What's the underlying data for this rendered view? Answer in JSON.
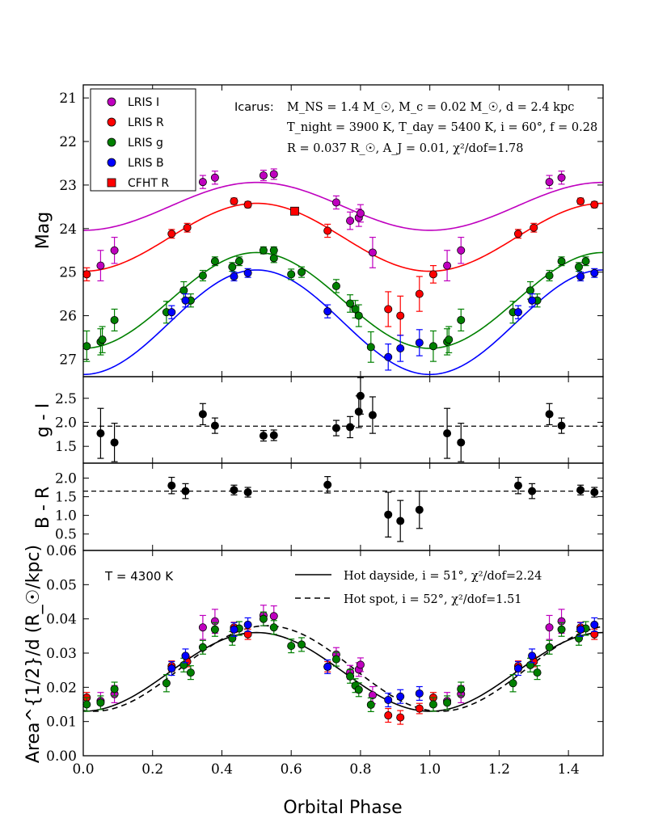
{
  "chart_data": [
    {
      "type": "scatter",
      "panel": "magnitude",
      "ylabel": "Mag",
      "xlim": [
        0.0,
        1.5
      ],
      "ylim": [
        27.4,
        20.7
      ],
      "y_inverted": true,
      "yticks": [
        "21",
        "22",
        "23",
        "24",
        "25",
        "26",
        "27"
      ],
      "legend": {
        "placement": "top-left",
        "entries": [
          {
            "label": "LRIS I",
            "color": "#bf00bf",
            "marker": "circle"
          },
          {
            "label": "LRIS R",
            "color": "#ff0000",
            "marker": "circle"
          },
          {
            "label": "LRIS g",
            "color": "#008000",
            "marker": "circle"
          },
          {
            "label": "LRIS B",
            "color": "#0000ff",
            "marker": "circle"
          },
          {
            "label": "CFHT R",
            "color": "#ff0000",
            "marker": "square"
          }
        ]
      },
      "annotation": {
        "line1_label": "Icarus:",
        "line1": "M_NS = 1.4 M_☉, M_c = 0.02 M_☉, d = 2.4 kpc",
        "line2": "T_night = 3900 K, T_day = 5400 K, i = 60°, f = 0.28",
        "line3": "R = 0.037 R_☉, A_J = 0.01, χ²/dof=1.78"
      },
      "models": [
        {
          "name": "I model",
          "color": "#bf00bf",
          "mean": 23.49,
          "amplitude": 0.55,
          "peak_phase": 0.5
        },
        {
          "name": "R model",
          "color": "#ff0000",
          "mean": 24.2,
          "amplitude": 0.78,
          "peak_phase": 0.5
        },
        {
          "name": "g model",
          "color": "#008000",
          "mean": 25.65,
          "amplitude": 1.1,
          "peak_phase": 0.5
        },
        {
          "name": "B model",
          "color": "#0000ff",
          "mean": 26.15,
          "amplitude": 1.2,
          "peak_phase": 0.5
        }
      ],
      "series": [
        {
          "name": "LRIS I",
          "color": "#bf00bf",
          "marker": "circle",
          "x": [
            0.05,
            0.09,
            0.345,
            0.38,
            0.52,
            0.55,
            0.73,
            0.77,
            0.795,
            0.8,
            0.835,
            1.05,
            1.09,
            1.345,
            1.38
          ],
          "y": [
            24.85,
            24.5,
            22.93,
            22.83,
            22.78,
            22.75,
            23.4,
            23.82,
            23.75,
            23.65,
            24.55,
            24.85,
            24.5,
            22.93,
            22.83
          ],
          "err": [
            0.35,
            0.3,
            0.15,
            0.15,
            0.12,
            0.12,
            0.15,
            0.2,
            0.2,
            0.2,
            0.35,
            0.35,
            0.3,
            0.15,
            0.15
          ]
        },
        {
          "name": "LRIS R",
          "color": "#ff0000",
          "marker": "circle",
          "x": [
            0.01,
            0.255,
            0.3,
            0.435,
            0.475,
            0.705,
            0.88,
            0.915,
            0.97,
            1.01,
            1.255,
            1.3,
            1.435,
            1.475
          ],
          "y": [
            25.05,
            24.12,
            23.98,
            23.37,
            23.45,
            24.05,
            25.85,
            26.0,
            25.5,
            25.05,
            24.12,
            23.98,
            23.37,
            23.45
          ],
          "err": [
            0.15,
            0.1,
            0.1,
            0.07,
            0.07,
            0.15,
            0.4,
            0.45,
            0.4,
            0.2,
            0.1,
            0.1,
            0.07,
            0.07
          ]
        },
        {
          "name": "LRIS g",
          "color": "#008000",
          "marker": "circle",
          "x": [
            0.01,
            0.05,
            0.055,
            0.09,
            0.24,
            0.29,
            0.31,
            0.345,
            0.38,
            0.43,
            0.45,
            0.52,
            0.55,
            0.55,
            0.6,
            0.63,
            0.73,
            0.77,
            0.785,
            0.795,
            0.83,
            1.01,
            1.05,
            1.055,
            1.09,
            1.24,
            1.29,
            1.31,
            1.345,
            1.38,
            1.43,
            1.45
          ],
          "y": [
            26.7,
            26.6,
            26.55,
            26.1,
            25.92,
            25.42,
            25.65,
            25.08,
            24.75,
            24.88,
            24.75,
            24.5,
            24.5,
            24.68,
            25.05,
            25.0,
            25.32,
            25.72,
            25.85,
            26.0,
            26.72,
            26.7,
            26.6,
            26.55,
            26.1,
            25.92,
            25.42,
            25.65,
            25.08,
            24.75,
            24.88,
            24.75
          ],
          "err": [
            0.35,
            0.3,
            0.3,
            0.25,
            0.25,
            0.2,
            0.15,
            0.12,
            0.1,
            0.1,
            0.1,
            0.08,
            0.08,
            0.1,
            0.12,
            0.12,
            0.15,
            0.2,
            0.2,
            0.25,
            0.35,
            0.35,
            0.3,
            0.3,
            0.25,
            0.25,
            0.2,
            0.15,
            0.12,
            0.1,
            0.1,
            0.1
          ]
        },
        {
          "name": "LRIS B",
          "color": "#0000ff",
          "marker": "circle",
          "x": [
            0.255,
            0.295,
            0.435,
            0.475,
            0.705,
            0.88,
            0.915,
            0.97,
            1.255,
            1.295,
            1.435,
            1.475
          ],
          "y": [
            25.92,
            25.65,
            25.1,
            25.02,
            25.9,
            26.95,
            26.75,
            26.62,
            25.92,
            25.65,
            25.1,
            25.02
          ],
          "err": [
            0.15,
            0.15,
            0.1,
            0.1,
            0.15,
            0.3,
            0.3,
            0.3,
            0.15,
            0.15,
            0.1,
            0.1
          ]
        },
        {
          "name": "CFHT R",
          "color": "#ff0000",
          "marker": "square",
          "x": [
            0.61
          ],
          "y": [
            23.6
          ],
          "err": [
            0.0
          ]
        }
      ]
    },
    {
      "type": "scatter",
      "panel": "color_gI",
      "ylabel": "g - I",
      "xlim": [
        0.0,
        1.5
      ],
      "ylim": [
        1.15,
        2.95
      ],
      "yticks": [
        "1.5",
        "2.0",
        "2.5"
      ],
      "reference_line": 1.92,
      "series": [
        {
          "name": "g - I",
          "color": "#000000",
          "x": [
            0.05,
            0.09,
            0.345,
            0.38,
            0.52,
            0.55,
            0.73,
            0.77,
            0.795,
            0.8,
            0.835,
            1.05,
            1.09,
            1.345,
            1.38
          ],
          "y": [
            1.77,
            1.58,
            2.17,
            1.93,
            1.72,
            1.73,
            1.88,
            1.9,
            2.22,
            2.55,
            2.15,
            1.77,
            1.58,
            2.17,
            1.93
          ],
          "err": [
            0.52,
            0.4,
            0.22,
            0.16,
            0.11,
            0.11,
            0.16,
            0.22,
            0.33,
            0.38,
            0.38,
            0.52,
            0.4,
            0.22,
            0.16
          ]
        }
      ]
    },
    {
      "type": "scatter",
      "panel": "color_BR",
      "ylabel": "B - R",
      "xlim": [
        0.0,
        1.5
      ],
      "ylim": [
        0.06,
        2.4
      ],
      "yticks": [
        "0.06",
        "0.5",
        "1.0",
        "1.5",
        "2.0"
      ],
      "reference_line": 1.65,
      "series": [
        {
          "name": "B - R",
          "color": "#000000",
          "x": [
            0.255,
            0.295,
            0.435,
            0.475,
            0.705,
            0.88,
            0.915,
            0.97,
            1.255,
            1.295,
            1.435,
            1.475
          ],
          "y": [
            1.8,
            1.65,
            1.68,
            1.62,
            1.82,
            1.02,
            0.85,
            1.15,
            1.8,
            1.65,
            1.68,
            1.62
          ],
          "err": [
            0.22,
            0.2,
            0.13,
            0.13,
            0.22,
            0.6,
            0.55,
            0.5,
            0.22,
            0.2,
            0.13,
            0.13
          ]
        }
      ]
    },
    {
      "type": "scatter",
      "panel": "area",
      "ylabel": "Area^{1/2}/d (R_☉/kpc)",
      "xlabel": "Orbital Phase",
      "xlim": [
        0.0,
        1.5
      ],
      "ylim": [
        0.0,
        0.06
      ],
      "xticks": [
        "0.0",
        "0.2",
        "0.4",
        "0.6",
        "0.8",
        "1.0",
        "1.2",
        "1.4"
      ],
      "yticks": [
        "0.00",
        "0.01",
        "0.02",
        "0.03",
        "0.04",
        "0.05"
      ],
      "temperature_label": "T = 4300 K",
      "legend": {
        "placement": "top-right",
        "entries": [
          {
            "label": "Hot dayside, i = 51°, χ²/dof=2.24",
            "style": "solid"
          },
          {
            "label": "Hot spot, i = 52°, χ²/dof=1.51",
            "style": "dashed"
          }
        ]
      },
      "models": [
        {
          "name": "Hot dayside",
          "style": "solid",
          "mean": 0.0245,
          "amplitude": 0.0115,
          "peak_phase": 0.5
        },
        {
          "name": "Hot spot",
          "style": "dashed",
          "mean": 0.0255,
          "amplitude": 0.0125,
          "peak_phase": 0.53
        }
      ],
      "series": [
        {
          "name": "LRIS I",
          "color": "#bf00bf",
          "x": [
            0.05,
            0.09,
            0.345,
            0.38,
            0.52,
            0.55,
            0.73,
            0.77,
            0.795,
            0.8,
            0.835,
            1.05,
            1.09,
            1.345,
            1.38
          ],
          "y": [
            0.016,
            0.018,
            0.0375,
            0.0393,
            0.041,
            0.0408,
            0.0296,
            0.0244,
            0.0252,
            0.0266,
            0.0177,
            0.016,
            0.018,
            0.0375,
            0.0393
          ],
          "err": [
            0.0025,
            0.0025,
            0.0035,
            0.0035,
            0.003,
            0.003,
            0.002,
            0.002,
            0.002,
            0.002,
            0.0025,
            0.0025,
            0.0025,
            0.0035,
            0.0035
          ]
        },
        {
          "name": "LRIS R",
          "color": "#ff0000",
          "x": [
            0.01,
            0.255,
            0.3,
            0.435,
            0.475,
            0.705,
            0.88,
            0.915,
            0.97,
            1.01,
            1.255,
            1.3,
            1.435,
            1.475
          ],
          "y": [
            0.017,
            0.0262,
            0.0275,
            0.0375,
            0.0355,
            0.026,
            0.0118,
            0.0112,
            0.0138,
            0.017,
            0.0262,
            0.0275,
            0.0375,
            0.0355
          ],
          "err": [
            0.0015,
            0.0015,
            0.0015,
            0.0015,
            0.0015,
            0.0015,
            0.002,
            0.002,
            0.0015,
            0.0015,
            0.0015,
            0.0015,
            0.0015,
            0.0015
          ]
        },
        {
          "name": "LRIS g",
          "color": "#008000",
          "x": [
            0.01,
            0.05,
            0.09,
            0.24,
            0.29,
            0.31,
            0.345,
            0.38,
            0.43,
            0.45,
            0.52,
            0.55,
            0.6,
            0.63,
            0.73,
            0.77,
            0.785,
            0.795,
            0.83,
            1.01,
            1.05,
            1.09,
            1.24,
            1.29,
            1.31,
            1.345,
            1.38,
            1.43,
            1.45
          ],
          "y": [
            0.015,
            0.0155,
            0.0195,
            0.0212,
            0.0265,
            0.0243,
            0.0317,
            0.0369,
            0.0343,
            0.0372,
            0.04,
            0.0375,
            0.0321,
            0.0325,
            0.0282,
            0.0232,
            0.0205,
            0.0193,
            0.0149,
            0.015,
            0.0155,
            0.0195,
            0.0212,
            0.0265,
            0.0243,
            0.0317,
            0.0369,
            0.0343,
            0.0372
          ],
          "err": [
            0.002,
            0.002,
            0.002,
            0.0025,
            0.002,
            0.002,
            0.002,
            0.002,
            0.002,
            0.002,
            0.002,
            0.002,
            0.002,
            0.002,
            0.002,
            0.002,
            0.002,
            0.002,
            0.002,
            0.002,
            0.002,
            0.002,
            0.0025,
            0.002,
            0.002,
            0.002,
            0.002,
            0.002,
            0.002
          ]
        },
        {
          "name": "LRIS B",
          "color": "#0000ff",
          "x": [
            0.255,
            0.295,
            0.435,
            0.475,
            0.705,
            0.88,
            0.915,
            0.97,
            1.255,
            1.295,
            1.435,
            1.475
          ],
          "y": [
            0.0255,
            0.0292,
            0.0369,
            0.0383,
            0.026,
            0.0163,
            0.0173,
            0.0182,
            0.0255,
            0.0292,
            0.0369,
            0.0383
          ],
          "err": [
            0.002,
            0.002,
            0.002,
            0.002,
            0.002,
            0.002,
            0.002,
            0.002,
            0.002,
            0.002,
            0.002,
            0.002
          ]
        }
      ]
    }
  ]
}
